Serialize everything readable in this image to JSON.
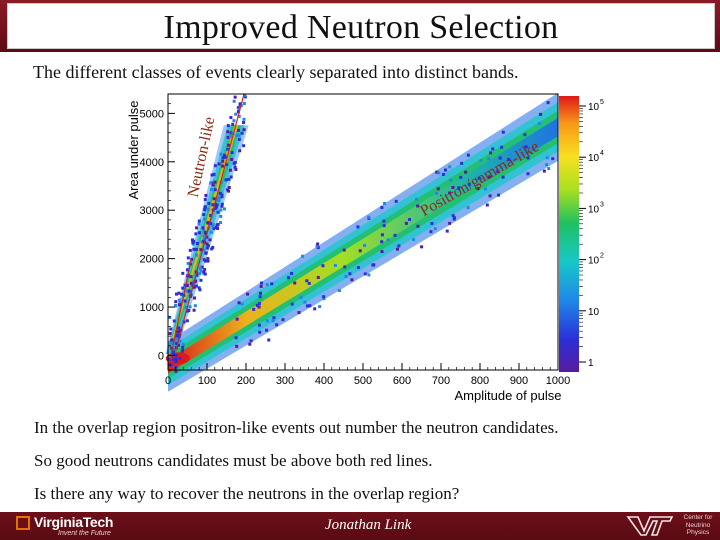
{
  "slide": {
    "title": "Improved Neutron Selection",
    "subtitle": "The different classes of events clearly separated into distinct bands.",
    "bullets": [
      "In the overlap region positron-like events out number the neutron candidates.",
      "So good neutrons candidates must be above both red lines.",
      "Is there any way to recover the neutrons in the overlap region?"
    ]
  },
  "plot": {
    "xlabel": "Amplitude of pulse",
    "ylabel": "Area under pulse",
    "band_label_neutron": "Neutron-like",
    "band_label_positron": "Positron/gamma-like",
    "x_ticks": [
      "0",
      "100",
      "200",
      "300",
      "400",
      "500",
      "600",
      "700",
      "800",
      "900",
      "1000"
    ],
    "y_ticks": [
      "0",
      "1000",
      "2000",
      "3000",
      "4000",
      "5000"
    ],
    "colorbar_ticks": [
      "1",
      "10",
      "10",
      "10",
      "10",
      "10"
    ],
    "colorbar_exps": [
      "",
      "",
      "2",
      "3",
      "4",
      "5"
    ],
    "xlim": [
      0,
      1000
    ],
    "ylim": [
      -300,
      5400
    ],
    "colors": {
      "line": "#c62828"
    }
  },
  "footer": {
    "university": "VirginiaTech",
    "tagline": "Invent the Future",
    "author": "Jonathan Link",
    "center_line1": "Center for",
    "center_line2": "Neutrino",
    "center_line3": "Physics"
  },
  "colors": {
    "maroon": "#6d0f19",
    "orange": "#e57200"
  }
}
